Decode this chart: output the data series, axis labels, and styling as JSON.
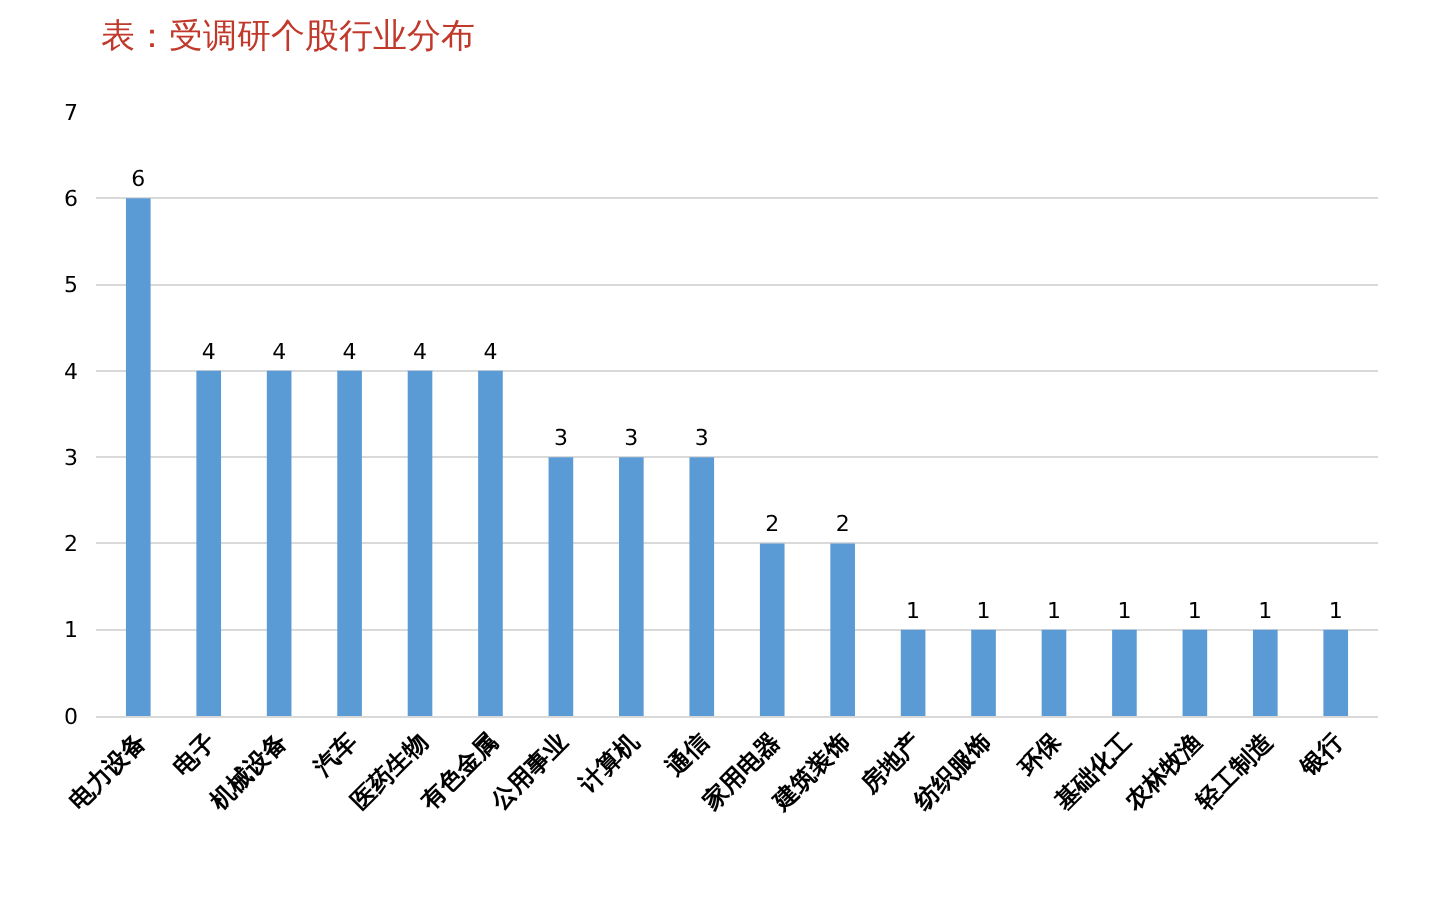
{
  "chart_data": {
    "type": "bar",
    "title": "表：受调研个股行业分布",
    "categories": [
      "电力设备",
      "电子",
      "机械设备",
      "汽车",
      "医药生物",
      "有色金属",
      "公用事业",
      "计算机",
      "通信",
      "家用电器",
      "建筑装饰",
      "房地产",
      "纺织服饰",
      "环保",
      "基础化工",
      "农林牧渔",
      "轻工制造",
      "银行"
    ],
    "values": [
      6,
      4,
      4,
      4,
      4,
      4,
      3,
      3,
      3,
      2,
      2,
      1,
      1,
      1,
      1,
      1,
      1,
      1
    ],
    "color": "#5b9bd5",
    "ylim": [
      0,
      7
    ],
    "yticks": [
      0,
      1,
      2,
      3,
      4,
      5,
      6,
      7
    ],
    "grid": "y",
    "data_labels": true,
    "legend": false
  }
}
